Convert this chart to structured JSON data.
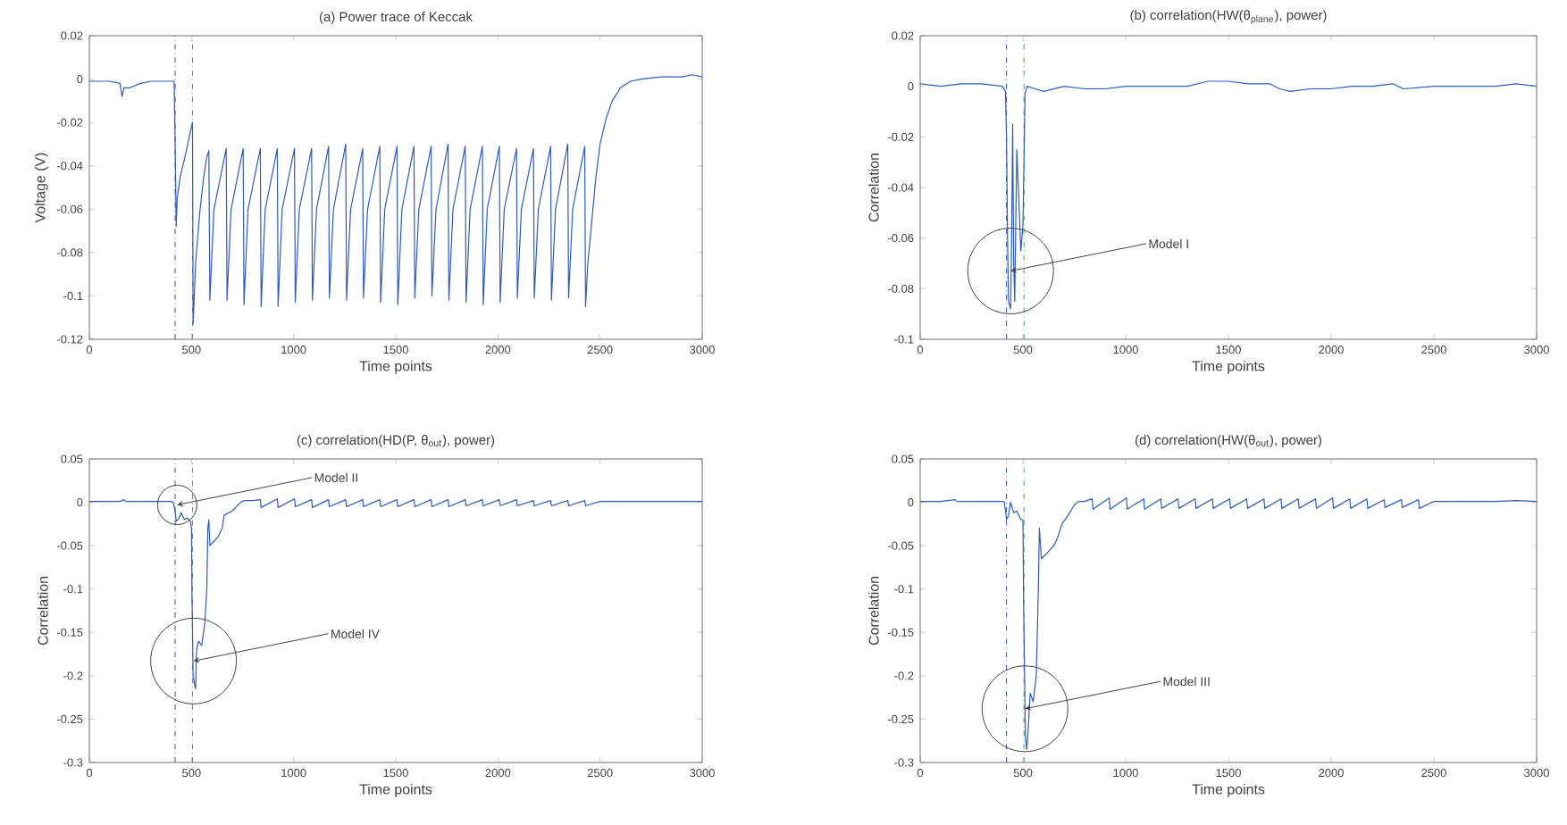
{
  "chart_data": [
    {
      "type": "line",
      "title": "(a) Power trace of Keccak",
      "xlabel": "Time points",
      "ylabel": "Voltage (V)",
      "x": [
        0,
        50,
        100,
        150,
        160,
        170,
        200,
        250,
        300,
        350,
        400,
        415,
        420,
        425,
        430,
        445,
        470,
        500,
        505,
        508,
        520,
        540,
        560,
        575,
        585,
        590,
        610,
        670,
        674,
        694,
        753,
        757,
        777,
        837,
        841,
        861,
        920,
        924,
        944,
        1004,
        1008,
        1028,
        1088,
        1092,
        1112,
        1171,
        1175,
        1195,
        1255,
        1259,
        1279,
        1338,
        1342,
        1362,
        1422,
        1426,
        1446,
        1506,
        1510,
        1530,
        1589,
        1593,
        1613,
        1673,
        1677,
        1697,
        1756,
        1760,
        1780,
        1840,
        1844,
        1864,
        1924,
        1928,
        1948,
        2007,
        2011,
        2031,
        2091,
        2095,
        2115,
        2174,
        2178,
        2198,
        2258,
        2262,
        2282,
        2342,
        2346,
        2366,
        2425,
        2429,
        2440,
        2460,
        2480,
        2500,
        2530,
        2560,
        2600,
        2650,
        2700,
        2800,
        2900,
        2950,
        3000
      ],
      "series": [
        {
          "color": "#2f5bb7",
          "values": [
            -0.001,
            -0.001,
            -0.001,
            -0.002,
            -0.008,
            -0.004,
            -0.004,
            -0.002,
            -0.001,
            -0.001,
            -0.001,
            -0.001,
            -0.03,
            -0.068,
            -0.055,
            -0.045,
            -0.035,
            -0.022,
            -0.02,
            -0.113,
            -0.085,
            -0.062,
            -0.045,
            -0.036,
            -0.033,
            -0.102,
            -0.06,
            -0.032,
            -0.102,
            -0.06,
            -0.032,
            -0.104,
            -0.06,
            -0.032,
            -0.105,
            -0.06,
            -0.032,
            -0.105,
            -0.06,
            -0.032,
            -0.103,
            -0.06,
            -0.032,
            -0.102,
            -0.06,
            -0.031,
            -0.101,
            -0.06,
            -0.03,
            -0.102,
            -0.06,
            -0.032,
            -0.101,
            -0.06,
            -0.031,
            -0.103,
            -0.06,
            -0.031,
            -0.104,
            -0.06,
            -0.031,
            -0.101,
            -0.06,
            -0.031,
            -0.1,
            -0.06,
            -0.03,
            -0.102,
            -0.06,
            -0.031,
            -0.103,
            -0.06,
            -0.031,
            -0.104,
            -0.06,
            -0.031,
            -0.103,
            -0.06,
            -0.032,
            -0.101,
            -0.06,
            -0.032,
            -0.101,
            -0.06,
            -0.031,
            -0.102,
            -0.06,
            -0.03,
            -0.101,
            -0.06,
            -0.031,
            -0.105,
            -0.085,
            -0.065,
            -0.045,
            -0.03,
            -0.018,
            -0.01,
            -0.004,
            -0.001,
            0,
            0.001,
            0.001,
            0.002,
            0.001
          ]
        }
      ],
      "xlim": [
        0,
        3000
      ],
      "ylim": [
        -0.12,
        0.02
      ],
      "xticks": [
        0,
        500,
        1000,
        1500,
        2000,
        2500,
        3000
      ],
      "yticks": [
        -0.12,
        -0.1,
        -0.08,
        -0.06,
        -0.04,
        -0.02,
        0,
        0.02
      ],
      "ref_lines": [
        {
          "axis": "x",
          "value": 420,
          "color": "#2b4fb8",
          "line_style": "dashed"
        },
        {
          "axis": "x",
          "value": 505,
          "color": "#4a9a5f",
          "line_style": "dashed"
        }
      ]
    },
    {
      "type": "line",
      "title": "(b) correlation(HW(θ$_{plane}$), power)",
      "xlabel": "Time points",
      "ylabel": "Correlation",
      "x": [
        0,
        100,
        200,
        300,
        400,
        415,
        420,
        425,
        430,
        440,
        445,
        450,
        455,
        460,
        470,
        480,
        490,
        500,
        505,
        510,
        520,
        560,
        600,
        700,
        800,
        900,
        1000,
        1100,
        1200,
        1300,
        1400,
        1450,
        1500,
        1600,
        1700,
        1750,
        1800,
        1900,
        2000,
        2100,
        2200,
        2300,
        2350,
        2500,
        2600,
        2700,
        2800,
        2900,
        3000
      ],
      "series": [
        {
          "color": "#2f5bb7",
          "values": [
            0.001,
            0,
            0.001,
            0.001,
            0,
            -0.002,
            -0.02,
            -0.06,
            -0.085,
            -0.088,
            -0.06,
            -0.015,
            -0.07,
            -0.085,
            -0.025,
            -0.045,
            -0.065,
            -0.055,
            -0.03,
            -0.003,
            0,
            -0.001,
            -0.002,
            0,
            -0.001,
            -0.001,
            0,
            0,
            0,
            0,
            0.002,
            0.002,
            0.002,
            0.001,
            0.001,
            -0.001,
            -0.002,
            -0.001,
            -0.001,
            0,
            0,
            0.001,
            -0.001,
            0,
            0,
            0,
            0,
            0.001,
            0
          ]
        }
      ],
      "xlim": [
        0,
        3000
      ],
      "ylim": [
        -0.1,
        0.02
      ],
      "xticks": [
        0,
        500,
        1000,
        1500,
        2000,
        2500,
        3000
      ],
      "yticks": [
        -0.1,
        -0.08,
        -0.06,
        -0.04,
        -0.02,
        0,
        0.02
      ],
      "ref_lines": [
        {
          "axis": "x",
          "value": 420,
          "color": "#2b4fb8",
          "line_style": "dashed"
        },
        {
          "axis": "x",
          "value": 505,
          "color": "#4a9a5f",
          "line_style": "dashed"
        }
      ],
      "annotations": [
        {
          "text": "Model I",
          "x": 440,
          "y": -0.073
        }
      ]
    },
    {
      "type": "line",
      "title": "(c) correlation(HD(P, θ$_{out}$), power)",
      "xlabel": "Time points",
      "ylabel": "Correlation",
      "x": [
        0,
        100,
        150,
        170,
        180,
        250,
        300,
        350,
        400,
        410,
        420,
        425,
        440,
        450,
        465,
        480,
        495,
        500,
        503,
        508,
        515,
        520,
        525,
        535,
        550,
        565,
        575,
        580,
        585,
        590,
        610,
        630,
        650,
        660,
        700,
        740,
        760,
        800,
        837,
        841,
        920,
        924,
        1004,
        1008,
        1088,
        1092,
        1171,
        1175,
        1255,
        1259,
        1338,
        1342,
        1422,
        1426,
        1506,
        1510,
        1589,
        1593,
        1673,
        1677,
        1756,
        1760,
        1840,
        1844,
        1924,
        1928,
        2007,
        2011,
        2091,
        2095,
        2174,
        2178,
        2258,
        2262,
        2342,
        2346,
        2425,
        2429,
        2500,
        2600,
        2700,
        2800,
        2900,
        3000
      ],
      "series": [
        {
          "color": "#2f5bb7",
          "values": [
            0.001,
            0.001,
            0.001,
            0.003,
            0.001,
            0.001,
            0.001,
            0.001,
            0.001,
            0,
            -0.01,
            -0.022,
            -0.018,
            -0.012,
            -0.02,
            -0.018,
            -0.022,
            -0.03,
            -0.12,
            -0.2,
            -0.21,
            -0.215,
            -0.17,
            -0.16,
            -0.165,
            -0.14,
            -0.1,
            -0.03,
            -0.02,
            -0.05,
            -0.045,
            -0.04,
            -0.03,
            -0.015,
            -0.01,
            0,
            0.002,
            0.002,
            0.003,
            -0.006,
            0.004,
            -0.006,
            0.004,
            -0.005,
            0.003,
            -0.006,
            0.003,
            -0.005,
            0.003,
            -0.005,
            0.003,
            -0.005,
            0.003,
            -0.005,
            0.003,
            -0.005,
            0.003,
            -0.005,
            0.003,
            -0.005,
            0.003,
            -0.005,
            0.003,
            -0.004,
            0.003,
            -0.004,
            0.003,
            -0.004,
            0.003,
            -0.004,
            0.002,
            -0.004,
            0.002,
            -0.004,
            0.002,
            -0.004,
            0.002,
            -0.004,
            0.001,
            0.001,
            0.001,
            0.001,
            0.001,
            0.001
          ]
        }
      ],
      "xlim": [
        0,
        3000
      ],
      "ylim": [
        -0.3,
        0.05
      ],
      "xticks": [
        0,
        500,
        1000,
        1500,
        2000,
        2500,
        3000
      ],
      "yticks": [
        -0.3,
        -0.25,
        -0.2,
        -0.15,
        -0.1,
        -0.05,
        0,
        0.05
      ],
      "ref_lines": [
        {
          "axis": "x",
          "value": 420,
          "color": "#2b4fb8",
          "line_style": "dashed"
        },
        {
          "axis": "x",
          "value": 505,
          "color": "#4a9a5f",
          "line_style": "dashed"
        }
      ],
      "annotations": [
        {
          "text": "Model II",
          "x": 430,
          "y": -0.003
        },
        {
          "text": "Model IV",
          "x": 510,
          "y": -0.183
        }
      ]
    },
    {
      "type": "line",
      "title": "(d) correlation(HW(θ$_{out}$), power)",
      "xlabel": "Time points",
      "ylabel": "Correlation",
      "x": [
        0,
        100,
        170,
        180,
        300,
        400,
        410,
        420,
        430,
        440,
        455,
        470,
        490,
        500,
        503,
        508,
        512,
        518,
        525,
        535,
        550,
        565,
        575,
        580,
        590,
        620,
        650,
        670,
        690,
        720,
        750,
        770,
        800,
        837,
        841,
        920,
        924,
        1004,
        1008,
        1088,
        1092,
        1171,
        1175,
        1255,
        1259,
        1338,
        1342,
        1422,
        1426,
        1506,
        1510,
        1589,
        1593,
        1673,
        1677,
        1756,
        1760,
        1840,
        1844,
        1924,
        1928,
        2007,
        2011,
        2091,
        2095,
        2174,
        2178,
        2258,
        2262,
        2342,
        2346,
        2425,
        2429,
        2500,
        2600,
        2700,
        2800,
        2900,
        3000
      ],
      "series": [
        {
          "color": "#2f5bb7",
          "values": [
            0.001,
            0.001,
            0.003,
            0.001,
            0.001,
            0.001,
            0,
            -0.02,
            -0.015,
            0,
            -0.012,
            -0.01,
            -0.02,
            -0.02,
            -0.11,
            -0.2,
            -0.27,
            -0.285,
            -0.265,
            -0.22,
            -0.23,
            -0.2,
            -0.1,
            -0.03,
            -0.065,
            -0.058,
            -0.05,
            -0.04,
            -0.025,
            -0.015,
            -0.003,
            0.001,
            0.001,
            0.004,
            -0.008,
            0.005,
            -0.008,
            0.005,
            -0.008,
            0.004,
            -0.008,
            0.004,
            -0.007,
            0.004,
            -0.007,
            0.004,
            -0.007,
            0.004,
            -0.007,
            0.004,
            -0.007,
            0.004,
            -0.007,
            0.004,
            -0.007,
            0.004,
            -0.007,
            0.004,
            -0.007,
            0.004,
            -0.007,
            0.005,
            -0.007,
            0.004,
            -0.007,
            0.004,
            -0.007,
            0.003,
            -0.006,
            0.003,
            -0.006,
            0.003,
            -0.007,
            0.001,
            0.001,
            0.001,
            0.001,
            0.002,
            0.001
          ]
        }
      ],
      "xlim": [
        0,
        3000
      ],
      "ylim": [
        -0.3,
        0.05
      ],
      "xticks": [
        0,
        500,
        1000,
        1500,
        2000,
        2500,
        3000
      ],
      "yticks": [
        -0.3,
        -0.25,
        -0.2,
        -0.15,
        -0.1,
        -0.05,
        0,
        0.05
      ],
      "ref_lines": [
        {
          "axis": "x",
          "value": 420,
          "color": "#2b4fb8",
          "line_style": "dashed"
        },
        {
          "axis": "x",
          "value": 505,
          "color": "#4a9a5f",
          "line_style": "dashed"
        }
      ],
      "annotations": [
        {
          "text": "Model III",
          "x": 510,
          "y": -0.238
        }
      ]
    }
  ]
}
